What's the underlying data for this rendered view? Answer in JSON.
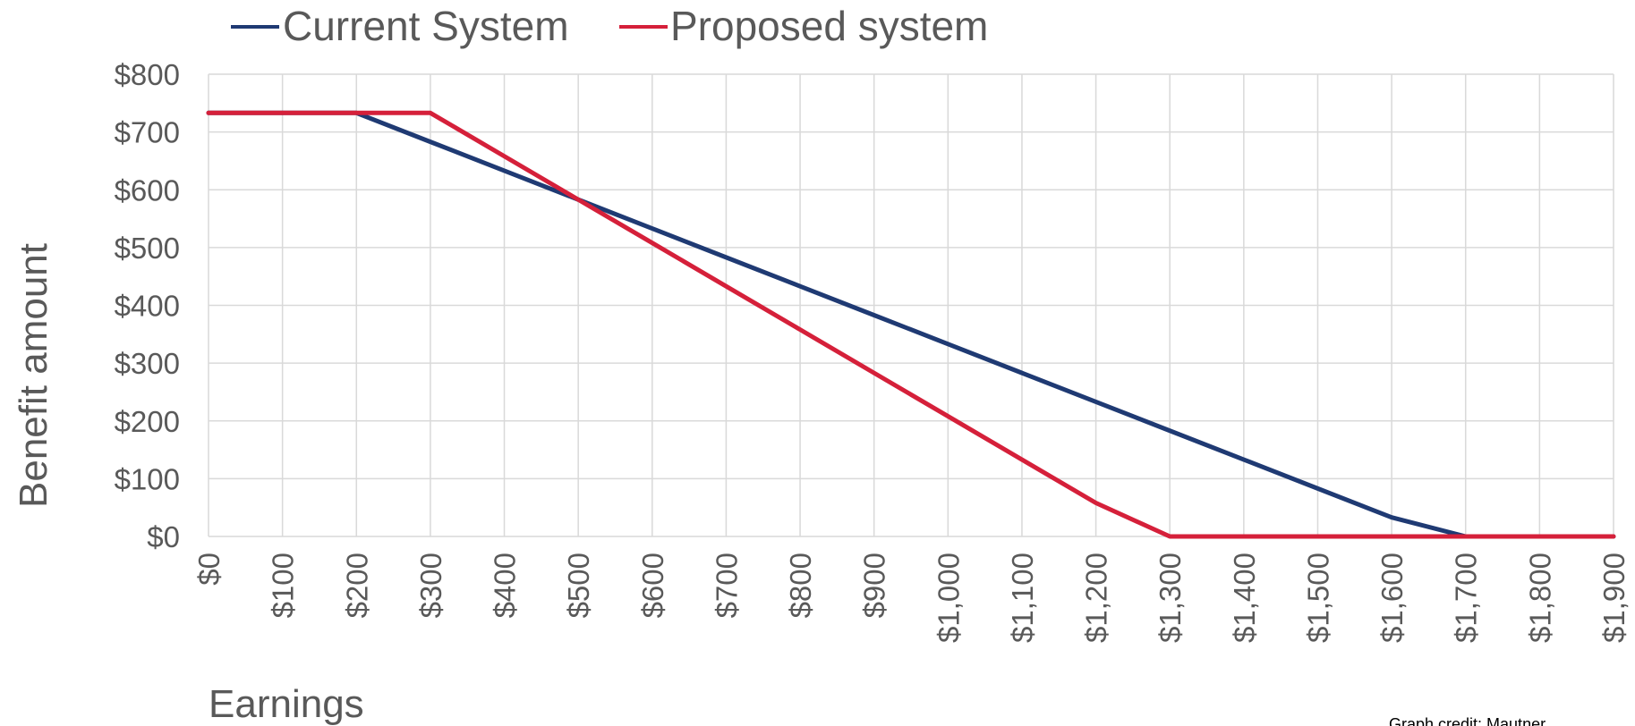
{
  "chart_data": {
    "type": "line",
    "title": "",
    "xlabel": "Earnings",
    "ylabel": "Benefit amount",
    "x": [
      0,
      100,
      200,
      300,
      400,
      500,
      600,
      700,
      800,
      900,
      1000,
      1100,
      1200,
      1300,
      1400,
      1500,
      1600,
      1700,
      1800,
      1900
    ],
    "x_tick_labels": [
      "$0",
      "$100",
      "$200",
      "$300",
      "$400",
      "$500",
      "$600",
      "$700",
      "$800",
      "$900",
      "$1,000",
      "$1,100",
      "$1,200",
      "$1,300",
      "$1,400",
      "$1,500",
      "$1,600",
      "$1,700",
      "$1,800",
      "$1,900"
    ],
    "y_tick_labels": [
      "$0",
      "$100",
      "$200",
      "$300",
      "$400",
      "$500",
      "$600",
      "$700",
      "$800"
    ],
    "y_ticks": [
      0,
      100,
      200,
      300,
      400,
      500,
      600,
      700,
      800
    ],
    "xlim": [
      0,
      1900
    ],
    "ylim": [
      0,
      800
    ],
    "grid": true,
    "legend_position": "top-left",
    "series": [
      {
        "name": "Current System",
        "color": "#1f3a73",
        "values": [
          733,
          733,
          733,
          683,
          633,
          583,
          533,
          483,
          433,
          383,
          333,
          283,
          233,
          183,
          133,
          83,
          33,
          0,
          0,
          0
        ]
      },
      {
        "name": "Proposed system",
        "color": "#d5203a",
        "values": [
          733,
          733,
          733,
          733,
          658,
          583,
          508,
          433,
          358,
          283,
          208,
          133,
          58,
          0,
          0,
          0,
          0,
          0,
          0,
          0
        ]
      }
    ],
    "annotations": [
      "Graph credit: Mautner"
    ]
  }
}
